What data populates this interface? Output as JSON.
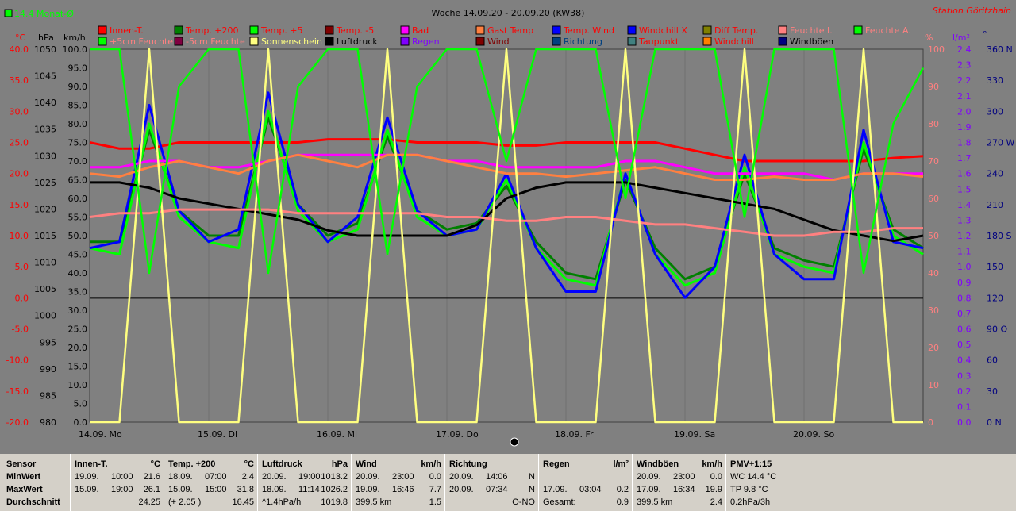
{
  "header": {
    "title": "Woche 14.09.20 - 20.09.20 (KW38)",
    "station": "Station Göritzhain",
    "avg_label": "14.4 Monat-Ø"
  },
  "axes": {
    "left_units": [
      "°C",
      "hPa",
      "km/h"
    ],
    "right_units": [
      "%",
      "l/m²",
      "°"
    ],
    "temp_ticks": [
      "40.0",
      "35.0",
      "30.0",
      "25.0",
      "20.0",
      "15.0",
      "10.0",
      "5.0",
      "0.0",
      "-5.0",
      "-10.0",
      "-15.0",
      "-20.0"
    ],
    "hpa_ticks": [
      "1050",
      "1045",
      "1040",
      "1035",
      "1030",
      "1025",
      "1020",
      "1015",
      "1010",
      "1005",
      "1000",
      "995",
      "990",
      "985",
      "980"
    ],
    "kmh_ticks": [
      "100.0",
      "95.0",
      "90.0",
      "85.0",
      "80.0",
      "75.0",
      "70.0",
      "65.0",
      "60.0",
      "55.0",
      "50.0",
      "45.0",
      "40.0",
      "35.0",
      "30.0",
      "25.0",
      "20.0",
      "15.0",
      "10.0",
      "5.0",
      "0.0"
    ],
    "pct_ticks": [
      "100",
      "90",
      "80",
      "70",
      "60",
      "50",
      "40",
      "30",
      "20",
      "10",
      "0"
    ],
    "rain_ticks": [
      "2.4",
      "2.3",
      "2.2",
      "2.1",
      "2.0",
      "1.9",
      "1.8",
      "1.7",
      "1.6",
      "1.5",
      "1.4",
      "1.3",
      "1.2",
      "1.1",
      "1.0",
      "0.9",
      "0.8",
      "0.7",
      "0.6",
      "0.5",
      "0.4",
      "0.3",
      "0.2",
      "0.1",
      "0.0"
    ],
    "dir_ticks": [
      "360 N",
      "330",
      "300",
      "270 W",
      "240",
      "210",
      "180 S",
      "150",
      "120",
      "90 O",
      "60",
      "30",
      "0 N"
    ],
    "day_labels": [
      "14.09. Mo",
      "15.09. Di",
      "16.09. Mi",
      "17.09. Do",
      "18.09. Fr",
      "19.09. Sa",
      "20.09. So"
    ]
  },
  "legend": [
    {
      "label": "Innen-T.",
      "color": "#ff0000",
      "text": "#ff0000"
    },
    {
      "label": "Temp. +200",
      "color": "#008000",
      "text": "#ff0000"
    },
    {
      "label": "Temp. +5",
      "color": "#00ff00",
      "text": "#ff0000"
    },
    {
      "label": "Temp. -5",
      "color": "#800000",
      "text": "#ff0000"
    },
    {
      "label": "Bad",
      "color": "#ff00ff",
      "text": "#ff0000"
    },
    {
      "label": "Gast Temp",
      "color": "#ff8040",
      "text": "#ff0000"
    },
    {
      "label": "Temp. Wind",
      "color": "#0000ff",
      "text": "#ff0000"
    },
    {
      "label": "Windchill X",
      "color": "#0000ff",
      "text": "#ff0000"
    },
    {
      "label": "Diff Temp.",
      "color": "#808000",
      "text": "#ff0000"
    },
    {
      "label": "Feuchte I.",
      "color": "#ff8080",
      "text": "#ff8080"
    },
    {
      "label": "Feuchte A.",
      "color": "#00ff00",
      "text": "#ff8080"
    },
    {
      "label": "+5cm Feuchte",
      "color": "#00ff00",
      "text": "#ff8080"
    },
    {
      "label": "-5cm Feuchte",
      "color": "#800040",
      "text": "#ff8080"
    },
    {
      "label": "Sonnenschein",
      "color": "#ffff80",
      "text": "#ffff80"
    },
    {
      "label": "Luftdruck",
      "color": "#000000",
      "text": "#000000"
    },
    {
      "label": "Regen",
      "color": "#8000ff",
      "text": "#8000ff"
    },
    {
      "label": "Wind",
      "color": "#800000",
      "text": "#800000"
    },
    {
      "label": "Richtung",
      "color": "#004080",
      "text": "#004080"
    },
    {
      "label": "Taupunkt",
      "color": "#408080",
      "text": "#ff0000"
    },
    {
      "label": "Windchill",
      "color": "#ff8000",
      "text": "#ff0000"
    },
    {
      "label": "Windböen",
      "color": "#000080",
      "text": "#000000"
    }
  ],
  "chart_data": {
    "type": "line",
    "x": [
      "14.09. 00:00",
      "14.09. 06:00",
      "14.09. 12:00",
      "14.09. 18:00",
      "15.09. 00:00",
      "15.09. 06:00",
      "15.09. 12:00",
      "15.09. 18:00",
      "16.09. 00:00",
      "16.09. 06:00",
      "16.09. 12:00",
      "16.09. 18:00",
      "17.09. 00:00",
      "17.09. 06:00",
      "17.09. 12:00",
      "17.09. 18:00",
      "18.09. 00:00",
      "18.09. 06:00",
      "18.09. 12:00",
      "18.09. 18:00",
      "19.09. 00:00",
      "19.09. 06:00",
      "19.09. 12:00",
      "19.09. 18:00",
      "20.09. 00:00",
      "20.09. 06:00",
      "20.09. 12:00",
      "20.09. 18:00",
      "20.09. 23:00"
    ],
    "xlim": [
      "14.09. 00:00",
      "20.09. 24:00"
    ],
    "ylim_temp": [
      -20,
      40
    ],
    "ylim_pressure": [
      980,
      1050
    ],
    "ylim_pct": [
      0,
      100
    ],
    "series": [
      {
        "name": "Innen-T.",
        "axis": "temp",
        "color": "#ff0000",
        "values": [
          25,
          24,
          24,
          25,
          25,
          25,
          25,
          25,
          25.5,
          25.5,
          25.5,
          25,
          25,
          25,
          24.5,
          24.5,
          25,
          25,
          25,
          25,
          24,
          23,
          22,
          22,
          22,
          22,
          22,
          22.5,
          22.8
        ]
      },
      {
        "name": "Temp. +200",
        "axis": "temp",
        "color": "#008000",
        "values": [
          9,
          9,
          27,
          14,
          10,
          10,
          29,
          15,
          10,
          12,
          26,
          14,
          11,
          12,
          18,
          9,
          4,
          3,
          19,
          8,
          3,
          5,
          20,
          8,
          6,
          5,
          24,
          11,
          8
        ]
      },
      {
        "name": "Temp. +5",
        "axis": "temp",
        "color": "#00ff00",
        "values": [
          8,
          7,
          28,
          13,
          9,
          8,
          30,
          14,
          9,
          11,
          27,
          13,
          10,
          11,
          19,
          8,
          3,
          2,
          20,
          7,
          2,
          4,
          21,
          7,
          5,
          4,
          25,
          10,
          7
        ]
      },
      {
        "name": "Temp. Wind",
        "axis": "temp",
        "color": "#0000ff",
        "values": [
          8,
          9,
          31,
          14,
          9,
          11,
          33,
          15,
          9,
          13,
          29,
          14,
          10,
          11,
          20,
          8,
          1,
          1,
          20,
          7,
          0,
          5,
          23,
          7,
          3,
          3,
          27,
          9,
          8
        ]
      },
      {
        "name": "Bad",
        "axis": "temp",
        "color": "#ff00ff",
        "values": [
          21,
          21,
          22,
          22,
          21,
          21,
          22,
          23,
          23,
          23,
          23,
          23,
          22,
          22,
          21,
          21,
          21,
          21,
          22,
          22,
          21,
          20,
          20,
          20,
          20,
          19,
          20,
          20,
          20
        ]
      },
      {
        "name": "Gast Temp",
        "axis": "temp",
        "color": "#ff8040",
        "values": [
          20,
          19.5,
          21,
          22,
          21,
          20,
          22,
          23,
          22,
          21,
          23,
          23,
          22,
          21,
          20,
          20,
          19.5,
          20,
          20.5,
          21,
          20,
          19,
          19,
          19.5,
          19,
          19,
          20,
          20,
          19.5
        ]
      },
      {
        "name": "Luftdruck",
        "axis": "pressure",
        "color": "#000000",
        "values": [
          1025,
          1025,
          1024,
          1022,
          1021,
          1020,
          1019,
          1018,
          1016,
          1015,
          1015,
          1015,
          1015,
          1017,
          1022,
          1024,
          1025,
          1025,
          1025,
          1024,
          1023,
          1022,
          1021,
          1020,
          1018,
          1016,
          1015,
          1014,
          1015
        ]
      },
      {
        "name": "Feuchte I.",
        "axis": "pct",
        "color": "#ff8080",
        "values": [
          55,
          56,
          56,
          57,
          57,
          57,
          57,
          56,
          56,
          56,
          56,
          56,
          55,
          55,
          54,
          54,
          55,
          55,
          54,
          53,
          53,
          52,
          51,
          50,
          50,
          51,
          51,
          52,
          52
        ]
      },
      {
        "name": "Sonnenschein",
        "axis": "pct",
        "color": "#ffff80",
        "values": [
          0,
          0,
          100,
          0,
          0,
          0,
          100,
          0,
          0,
          0,
          100,
          0,
          0,
          0,
          100,
          0,
          0,
          0,
          100,
          0,
          0,
          0,
          100,
          0,
          0,
          0,
          100,
          0,
          0
        ]
      },
      {
        "name": "Feuchte A.",
        "axis": "pct",
        "color": "#00ff00",
        "values": [
          100,
          100,
          40,
          90,
          100,
          100,
          40,
          90,
          100,
          100,
          45,
          90,
          100,
          100,
          70,
          100,
          100,
          100,
          60,
          100,
          100,
          100,
          55,
          100,
          100,
          100,
          40,
          80,
          95
        ]
      }
    ]
  },
  "table": {
    "row_labels": [
      "Sensor",
      "MinWert",
      "MaxWert",
      "Durchschnitt"
    ],
    "columns": [
      {
        "name": "Innen-T.",
        "unit": "°C",
        "min": [
          "19.09.",
          "10:00",
          "21.6"
        ],
        "max": [
          "15.09.",
          "19:00",
          "26.1"
        ],
        "avg": [
          "",
          "",
          "24.25"
        ]
      },
      {
        "name": "Temp. +200",
        "unit": "°C",
        "min": [
          "18.09.",
          "07:00",
          "2.4"
        ],
        "max": [
          "15.09.",
          "15:00",
          "31.8"
        ],
        "avg": [
          "(+ 2.05 )",
          "",
          "16.45"
        ]
      },
      {
        "name": "Luftdruck",
        "unit": "hPa",
        "min": [
          "20.09.",
          "19:00",
          "1013.2"
        ],
        "max": [
          "18.09.",
          "11:14",
          "1026.2"
        ],
        "avg": [
          "^1.4hPa/h",
          "",
          "1019.8"
        ]
      },
      {
        "name": "Wind",
        "unit": "km/h",
        "min": [
          "20.09.",
          "23:00",
          "0.0"
        ],
        "max": [
          "19.09.",
          "16:46",
          "7.7"
        ],
        "avg": [
          "399.5 km",
          "",
          "1.5"
        ]
      },
      {
        "name": "Richtung",
        "unit": "",
        "min": [
          "20.09.",
          "14:06",
          "N"
        ],
        "max": [
          "20.09.",
          "07:34",
          "N"
        ],
        "avg": [
          "",
          "",
          "O-NO"
        ]
      },
      {
        "name": "Regen",
        "unit": "l/m²",
        "min": [
          "",
          "",
          ""
        ],
        "max": [
          "17.09.",
          "03:04",
          "0.2"
        ],
        "avg": [
          "Gesamt:",
          "",
          "0.9"
        ]
      },
      {
        "name": "Windböen",
        "unit": "km/h",
        "min": [
          "20.09.",
          "23:00",
          "0.0"
        ],
        "max": [
          "17.09.",
          "16:34",
          "19.9"
        ],
        "avg": [
          "399.5 km",
          "",
          "2.4"
        ]
      },
      {
        "name": "PMV+1:15",
        "unit": "",
        "min": [
          "WC 14.4 °C",
          "",
          ""
        ],
        "max": [
          "TP 9.8 °C",
          "",
          ""
        ],
        "avg": [
          "0.2hPa/3h",
          "",
          ""
        ]
      }
    ]
  }
}
